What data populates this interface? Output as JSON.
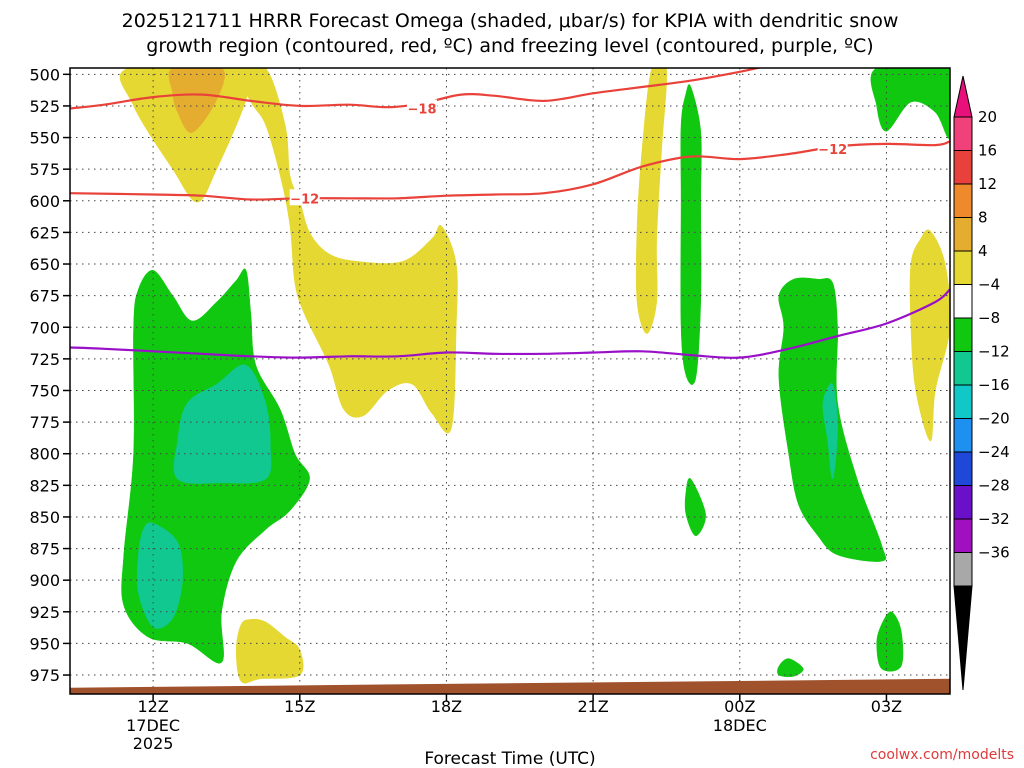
{
  "chart_data": {
    "type": "heatmap",
    "title_line1": "2025121711 HRRR Forecast Omega (shaded, μbar/s) for KPIA with dendritic snow",
    "title_line2": "growth region (contoured, red, ºC) and freezing level (contoured, purple, ºC)",
    "xlabel": "Forecast Time (UTC)",
    "credit": "coolwx.com/modelts",
    "x_range_hours": [
      10.3,
      28.3
    ],
    "y_range_hpa": [
      495,
      990
    ],
    "x_ticks": [
      {
        "hour": 12,
        "label": "12Z",
        "sub1": "17DEC",
        "sub2": "2025"
      },
      {
        "hour": 15,
        "label": "15Z",
        "sub1": "",
        "sub2": ""
      },
      {
        "hour": 18,
        "label": "18Z",
        "sub1": "",
        "sub2": ""
      },
      {
        "hour": 21,
        "label": "21Z",
        "sub1": "",
        "sub2": ""
      },
      {
        "hour": 24,
        "label": "00Z",
        "sub1": "18DEC",
        "sub2": ""
      },
      {
        "hour": 27,
        "label": "03Z",
        "sub1": "",
        "sub2": ""
      }
    ],
    "y_ticks": [
      "500",
      "525",
      "550",
      "575",
      "600",
      "625",
      "650",
      "675",
      "700",
      "725",
      "750",
      "775",
      "800",
      "825",
      "850",
      "875",
      "900",
      "925",
      "950",
      "975"
    ],
    "colorbar": {
      "labels": [
        "20",
        "16",
        "12",
        "8",
        "4",
        "−4",
        "−8",
        "−12",
        "−16",
        "−20",
        "−24",
        "−28",
        "−32",
        "−36"
      ],
      "colors": [
        "#f0417a",
        "#e8403a",
        "#ee8a2c",
        "#e5ad30",
        "#e5d832",
        "#ffffff",
        "#10c810",
        "#10c890",
        "#10c8c8",
        "#1e90f0",
        "#2048d8",
        "#6a10c8",
        "#a010c0",
        "#a8a8a8"
      ]
    },
    "contours": [
      {
        "label": "-18",
        "color": "#e8423a",
        "points": [
          [
            10.3,
            527
          ],
          [
            11,
            524
          ],
          [
            12,
            518
          ],
          [
            13,
            516
          ],
          [
            14,
            521
          ],
          [
            15,
            525
          ],
          [
            16,
            524
          ],
          [
            16.8,
            526
          ],
          [
            17.5,
            523
          ],
          [
            18.3,
            516
          ],
          [
            19,
            517
          ],
          [
            20,
            521
          ],
          [
            21,
            515
          ],
          [
            22,
            510
          ],
          [
            23,
            505
          ],
          [
            24,
            498
          ],
          [
            24.7,
            492
          ]
        ]
      },
      {
        "label": "-12",
        "color": "#e8423a",
        "points": [
          [
            10.3,
            594
          ],
          [
            12,
            595
          ],
          [
            13,
            596
          ],
          [
            14,
            599
          ],
          [
            15,
            598
          ],
          [
            16,
            598
          ],
          [
            17,
            598
          ],
          [
            18,
            596
          ],
          [
            19,
            595
          ],
          [
            20,
            594
          ],
          [
            21,
            587
          ],
          [
            22,
            573
          ],
          [
            23,
            565
          ],
          [
            24,
            567
          ],
          [
            25,
            563
          ],
          [
            26,
            557
          ],
          [
            27,
            555
          ],
          [
            28,
            556
          ],
          [
            28.3,
            553
          ]
        ]
      },
      {
        "label": "0",
        "color": "#9a10c8",
        "points": [
          [
            10.3,
            716
          ],
          [
            11,
            717
          ],
          [
            12,
            719
          ],
          [
            13,
            721
          ],
          [
            14,
            723
          ],
          [
            15,
            724
          ],
          [
            16,
            723
          ],
          [
            17,
            723
          ],
          [
            18,
            720
          ],
          [
            19,
            721
          ],
          [
            20,
            721
          ],
          [
            21,
            720
          ],
          [
            22,
            719
          ],
          [
            23,
            722
          ],
          [
            24,
            724
          ],
          [
            25,
            717
          ],
          [
            26,
            707
          ],
          [
            27,
            697
          ],
          [
            28,
            680
          ],
          [
            28.3,
            670
          ]
        ]
      }
    ],
    "label_positions": [
      {
        "text": "-18",
        "hour": 17.5,
        "hpa": 527
      },
      {
        "text": "-12",
        "hour": 15.1,
        "hpa": 598
      },
      {
        "text": "-12",
        "hour": 25.9,
        "hpa": 559
      }
    ],
    "regions": [
      {
        "level": "4 to 8",
        "color": "#e5d832",
        "points": [
          [
            11.5,
            495
          ],
          [
            13.9,
            495
          ],
          [
            13.9,
            520
          ],
          [
            13.3,
            575
          ],
          [
            12.9,
            601
          ],
          [
            12.4,
            575
          ],
          [
            11.6,
            525
          ]
        ]
      },
      {
        "level": "4 to 8",
        "color": "#e5d832",
        "points": [
          [
            13.7,
            495
          ],
          [
            14.3,
            495
          ],
          [
            14.7,
            540
          ],
          [
            14.8,
            580
          ],
          [
            15,
            600
          ],
          [
            15.2,
            625
          ],
          [
            15.6,
            642
          ],
          [
            16.2,
            648
          ],
          [
            17.1,
            648
          ],
          [
            17.7,
            630
          ],
          [
            17.9,
            620
          ],
          [
            18.2,
            650
          ],
          [
            18.2,
            700
          ],
          [
            18.1,
            780
          ],
          [
            17.7,
            768
          ],
          [
            17.3,
            745
          ],
          [
            16.8,
            750
          ],
          [
            16.3,
            770
          ],
          [
            15.9,
            765
          ],
          [
            15.6,
            730
          ],
          [
            15.1,
            690
          ],
          [
            14.9,
            665
          ],
          [
            14.8,
            620
          ],
          [
            14.6,
            580
          ],
          [
            14.3,
            540
          ],
          [
            14.0,
            522
          ]
        ]
      },
      {
        "level": "8 to 12",
        "color": "#e5ad30",
        "points": [
          [
            12.4,
            495
          ],
          [
            13.4,
            495
          ],
          [
            13.3,
            520
          ],
          [
            12.8,
            546
          ],
          [
            12.5,
            530
          ],
          [
            12.4,
            515
          ]
        ]
      },
      {
        "level": "4 to 8",
        "color": "#e5d832",
        "points": [
          [
            22.2,
            495
          ],
          [
            22.5,
            495
          ],
          [
            22.4,
            560
          ],
          [
            22.3,
            630
          ],
          [
            22.3,
            680
          ],
          [
            22.1,
            705
          ],
          [
            21.9,
            680
          ],
          [
            21.9,
            620
          ],
          [
            22.0,
            560
          ]
        ]
      },
      {
        "level": "4 to 8",
        "color": "#e5d832",
        "points": [
          [
            27.9,
            624
          ],
          [
            28.2,
            650
          ],
          [
            28.3,
            700
          ],
          [
            28.0,
            750
          ],
          [
            27.9,
            790
          ],
          [
            27.6,
            750
          ],
          [
            27.5,
            700
          ],
          [
            27.5,
            650
          ],
          [
            27.7,
            630
          ]
        ]
      },
      {
        "level": "4 to 8",
        "color": "#e5d832",
        "points": [
          [
            14.3,
            933
          ],
          [
            14.7,
            945
          ],
          [
            15.0,
            955
          ],
          [
            15.0,
            975
          ],
          [
            14.2,
            978
          ],
          [
            13.8,
            980
          ],
          [
            13.7,
            955
          ],
          [
            13.8,
            935
          ],
          [
            14.0,
            931
          ]
        ]
      },
      {
        "level": "-4 to -8",
        "color": "#10c810",
        "points": [
          [
            12.0,
            655
          ],
          [
            12.4,
            675
          ],
          [
            12.8,
            695
          ],
          [
            13.3,
            680
          ],
          [
            13.7,
            663
          ],
          [
            13.9,
            655
          ],
          [
            14.0,
            690
          ],
          [
            14.1,
            730
          ],
          [
            14.6,
            765
          ],
          [
            14.9,
            800
          ],
          [
            15.2,
            820
          ],
          [
            14.8,
            845
          ],
          [
            14.3,
            860
          ],
          [
            13.7,
            885
          ],
          [
            13.4,
            925
          ],
          [
            13.4,
            965
          ],
          [
            12.7,
            950
          ],
          [
            11.9,
            945
          ],
          [
            11.4,
            920
          ],
          [
            11.4,
            880
          ],
          [
            11.6,
            800
          ],
          [
            11.6,
            700
          ],
          [
            11.7,
            670
          ]
        ]
      },
      {
        "level": "-8 to -12",
        "color": "#10c890",
        "points": [
          [
            13.9,
            730
          ],
          [
            14.3,
            760
          ],
          [
            14.4,
            795
          ],
          [
            14.3,
            820
          ],
          [
            13.4,
            823
          ],
          [
            12.5,
            820
          ],
          [
            12.5,
            790
          ],
          [
            12.7,
            760
          ],
          [
            13.3,
            745
          ]
        ]
      },
      {
        "level": "-8 to -12",
        "color": "#10c890",
        "points": [
          [
            12.0,
            855
          ],
          [
            12.5,
            870
          ],
          [
            12.6,
            900
          ],
          [
            12.4,
            930
          ],
          [
            12.0,
            937
          ],
          [
            11.7,
            910
          ],
          [
            11.7,
            880
          ],
          [
            11.8,
            860
          ]
        ]
      },
      {
        "level": "-4 to -8",
        "color": "#10c810",
        "points": [
          [
            23.0,
            510
          ],
          [
            23.2,
            545
          ],
          [
            23.2,
            600
          ],
          [
            23.2,
            680
          ],
          [
            23.1,
            740
          ],
          [
            22.9,
            738
          ],
          [
            22.8,
            700
          ],
          [
            22.8,
            600
          ],
          [
            22.8,
            540
          ],
          [
            22.9,
            515
          ]
        ]
      },
      {
        "level": "-4 to -8",
        "color": "#10c810",
        "points": [
          [
            23.0,
            820
          ],
          [
            23.3,
            848
          ],
          [
            23.1,
            865
          ],
          [
            22.9,
            848
          ],
          [
            22.9,
            830
          ]
        ]
      },
      {
        "level": "-4 to -8",
        "color": "#10c810",
        "points": [
          [
            25.1,
            662
          ],
          [
            25.6,
            662
          ],
          [
            25.9,
            665
          ],
          [
            26.0,
            700
          ],
          [
            26.0,
            760
          ],
          [
            26.4,
            820
          ],
          [
            26.9,
            872
          ],
          [
            26.9,
            885
          ],
          [
            26.0,
            880
          ],
          [
            25.6,
            865
          ],
          [
            25.2,
            840
          ],
          [
            25.0,
            800
          ],
          [
            24.8,
            740
          ],
          [
            24.9,
            700
          ],
          [
            24.8,
            675
          ]
        ]
      },
      {
        "level": "-8 to -12",
        "color": "#10c890",
        "points": [
          [
            25.9,
            745
          ],
          [
            26.0,
            780
          ],
          [
            25.9,
            820
          ],
          [
            25.8,
            790
          ],
          [
            25.7,
            760
          ]
        ]
      },
      {
        "level": "-4 to -8",
        "color": "#10c810",
        "points": [
          [
            26.8,
            495
          ],
          [
            28.3,
            495
          ],
          [
            28.3,
            550
          ],
          [
            28.0,
            530
          ],
          [
            27.5,
            522
          ],
          [
            27.0,
            545
          ],
          [
            26.8,
            525
          ]
        ]
      },
      {
        "level": "-4 to -8",
        "color": "#10c810",
        "points": [
          [
            27.1,
            925
          ],
          [
            27.3,
            940
          ],
          [
            27.3,
            968
          ],
          [
            26.9,
            970
          ],
          [
            26.8,
            950
          ],
          [
            26.9,
            935
          ]
        ]
      },
      {
        "level": "-4 to -8",
        "color": "#10c810",
        "points": [
          [
            25.0,
            962
          ],
          [
            25.3,
            970
          ],
          [
            25.1,
            976
          ],
          [
            24.8,
            975
          ],
          [
            24.8,
            968
          ]
        ]
      }
    ],
    "terrain": {
      "color": "#a0522d",
      "points": [
        [
          10.3,
          985
        ],
        [
          28.3,
          978
        ],
        [
          28.3,
          990
        ],
        [
          10.3,
          990
        ]
      ]
    }
  }
}
